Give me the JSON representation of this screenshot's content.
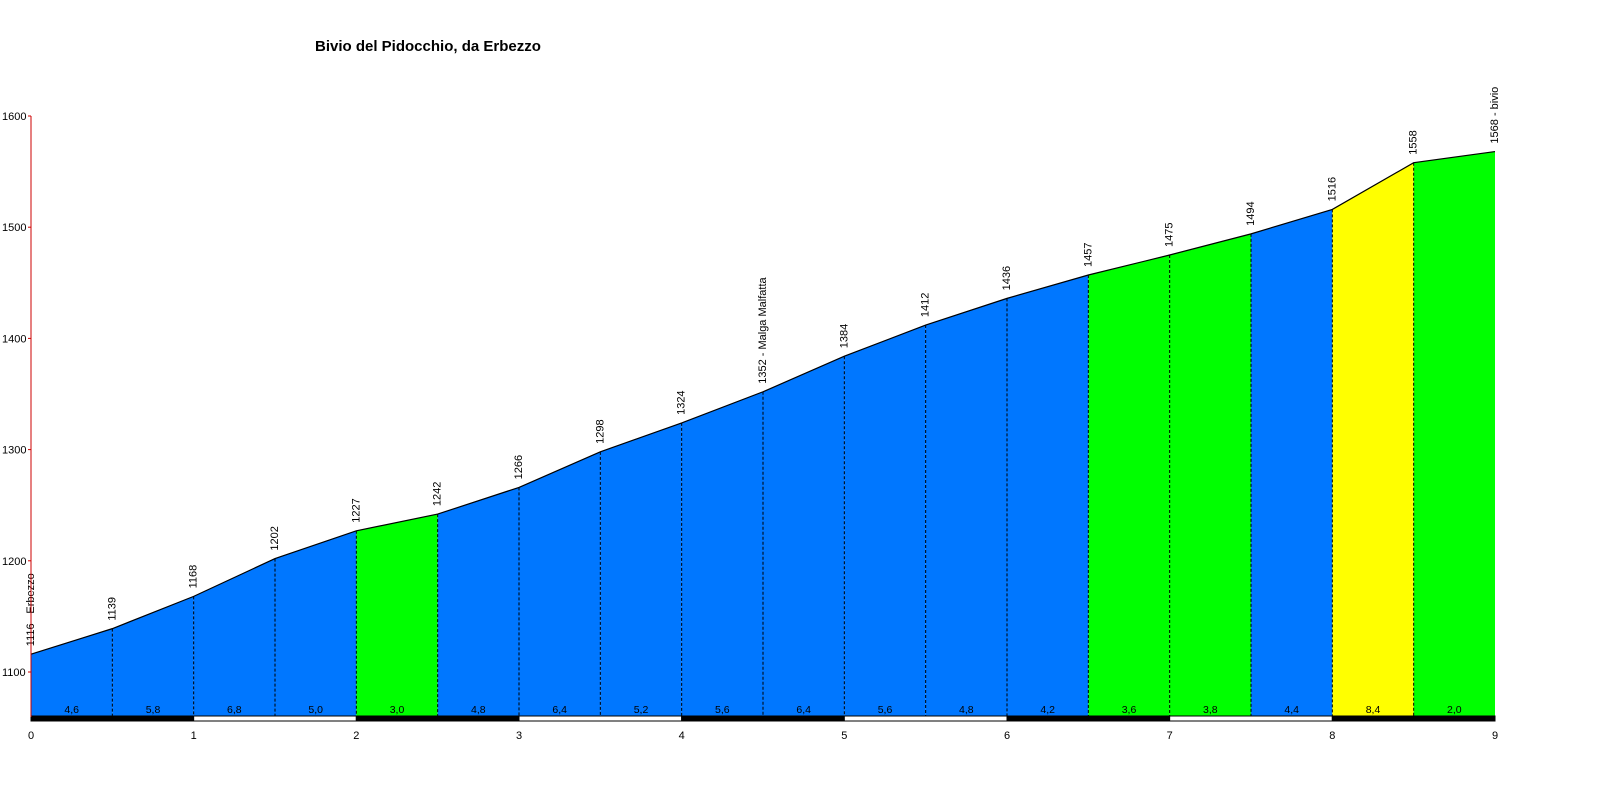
{
  "chart_data": {
    "type": "area",
    "title": "Bivio del Pidocchio, da Erbezzo",
    "xlabel": "",
    "ylabel": "",
    "xlim": [
      0,
      9
    ],
    "ylim": [
      1060,
      1600
    ],
    "x_ticks": [
      "0",
      "1",
      "2",
      "3",
      "4",
      "5",
      "6",
      "7",
      "8",
      "9"
    ],
    "y_ticks": [
      "1100",
      "1200",
      "1300",
      "1400",
      "1500",
      "1600"
    ],
    "points": [
      {
        "x": 0,
        "y": 1116,
        "label": "1116 - Erbezzo"
      },
      {
        "x": 0.5,
        "y": 1139,
        "label": "1139"
      },
      {
        "x": 1,
        "y": 1168,
        "label": "1168"
      },
      {
        "x": 1.5,
        "y": 1202,
        "label": "1202"
      },
      {
        "x": 2,
        "y": 1227,
        "label": "1227"
      },
      {
        "x": 2.5,
        "y": 1242,
        "label": "1242"
      },
      {
        "x": 3,
        "y": 1266,
        "label": "1266"
      },
      {
        "x": 3.5,
        "y": 1298,
        "label": "1298"
      },
      {
        "x": 4,
        "y": 1324,
        "label": "1324"
      },
      {
        "x": 4.5,
        "y": 1352,
        "label": "1352 - Malga Malfatta"
      },
      {
        "x": 5,
        "y": 1384,
        "label": "1384"
      },
      {
        "x": 5.5,
        "y": 1412,
        "label": "1412"
      },
      {
        "x": 6,
        "y": 1436,
        "label": "1436"
      },
      {
        "x": 6.5,
        "y": 1457,
        "label": "1457"
      },
      {
        "x": 7,
        "y": 1475,
        "label": "1475"
      },
      {
        "x": 7.5,
        "y": 1494,
        "label": "1494"
      },
      {
        "x": 8,
        "y": 1516,
        "label": "1516"
      },
      {
        "x": 8.5,
        "y": 1558,
        "label": "1558"
      },
      {
        "x": 9,
        "y": 1568,
        "label": "1568 - bivio"
      }
    ],
    "segments": [
      {
        "gradient": "4,6",
        "color": "#0077ff"
      },
      {
        "gradient": "5,8",
        "color": "#0077ff"
      },
      {
        "gradient": "6,8",
        "color": "#0077ff"
      },
      {
        "gradient": "5,0",
        "color": "#0077ff"
      },
      {
        "gradient": "3,0",
        "color": "#00ff00"
      },
      {
        "gradient": "4,8",
        "color": "#0077ff"
      },
      {
        "gradient": "6,4",
        "color": "#0077ff"
      },
      {
        "gradient": "5,2",
        "color": "#0077ff"
      },
      {
        "gradient": "5,6",
        "color": "#0077ff"
      },
      {
        "gradient": "6,4",
        "color": "#0077ff"
      },
      {
        "gradient": "5,6",
        "color": "#0077ff"
      },
      {
        "gradient": "4,8",
        "color": "#0077ff"
      },
      {
        "gradient": "4,2",
        "color": "#0077ff"
      },
      {
        "gradient": "3,6",
        "color": "#00ff00"
      },
      {
        "gradient": "3,8",
        "color": "#00ff00"
      },
      {
        "gradient": "4,4",
        "color": "#0077ff"
      },
      {
        "gradient": "8,4",
        "color": "#ffff00"
      },
      {
        "gradient": "2,0",
        "color": "#00ff00"
      }
    ],
    "grid": false,
    "legend": "none"
  }
}
